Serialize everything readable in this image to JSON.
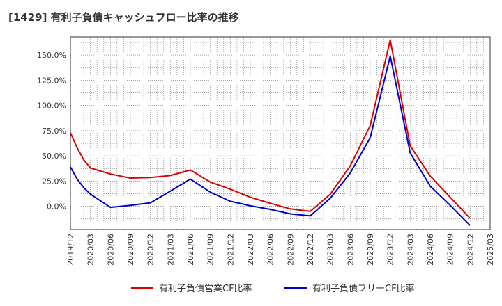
{
  "chart_data": {
    "type": "line",
    "title": "[1429]  有利子負債キャッシュフロー比率の推移",
    "x": [
      "2019/12",
      "2020/03",
      "2020/06",
      "2020/09",
      "2020/12",
      "2021/03",
      "2021/06",
      "2021/09",
      "2021/12",
      "2022/03",
      "2022/06",
      "2022/09",
      "2022/12",
      "2023/03",
      "2023/06",
      "2023/09",
      "2023/12",
      "2024/03",
      "2024/06",
      "2024/09",
      "2024/12",
      "2025/03"
    ],
    "x_tick_labels": [
      "2019/12",
      "2020/03",
      "2020/06",
      "2020/09",
      "2020/12",
      "2021/03",
      "2021/06",
      "2021/09",
      "2021/12",
      "2022/03",
      "2022/06",
      "2022/09",
      "2022/12",
      "2023/03",
      "2023/06",
      "2023/09",
      "2023/12",
      "2024/03",
      "2024/06",
      "2024/09",
      "2024/12",
      "2025/03"
    ],
    "ylim": [
      -23,
      168
    ],
    "y_ticks": [
      0,
      25,
      50,
      75,
      100,
      125,
      150
    ],
    "y_tick_labels": [
      "0.0%",
      "25.0%",
      "50.0%",
      "75.0%",
      "100.0%",
      "125.0%",
      "150.0%"
    ],
    "grid": true,
    "legend_position": "bottom",
    "series": [
      {
        "name": "有利子負債営業CF比率",
        "color": "#dd0000",
        "points": [
          {
            "x": "2019/12",
            "y": 73
          },
          {
            "x": "2020/01",
            "y": 58
          },
          {
            "x": "2020/02",
            "y": 46
          },
          {
            "x": "2020/03",
            "y": 38
          },
          {
            "x": "2020/06",
            "y": 32
          },
          {
            "x": "2020/09",
            "y": 28
          },
          {
            "x": "2020/12",
            "y": 28.5
          },
          {
            "x": "2021/03",
            "y": 30.5
          },
          {
            "x": "2021/06",
            "y": 36
          },
          {
            "x": "2021/09",
            "y": 24
          },
          {
            "x": "2021/12",
            "y": 17
          },
          {
            "x": "2022/03",
            "y": 9
          },
          {
            "x": "2022/06",
            "y": 3
          },
          {
            "x": "2022/09",
            "y": -2.5
          },
          {
            "x": "2022/12",
            "y": -5
          },
          {
            "x": "2023/03",
            "y": 12
          },
          {
            "x": "2023/06",
            "y": 40
          },
          {
            "x": "2023/09",
            "y": 80
          },
          {
            "x": "2023/12",
            "y": 165
          },
          {
            "x": "2024/03",
            "y": 60
          },
          {
            "x": "2024/06",
            "y": 30
          },
          {
            "x": "2024/09",
            "y": 9
          },
          {
            "x": "2024/12",
            "y": -12
          }
        ]
      },
      {
        "name": "有利子負債フリーCF比率",
        "color": "#0000cc",
        "points": [
          {
            "x": "2019/12",
            "y": 39
          },
          {
            "x": "2020/01",
            "y": 27
          },
          {
            "x": "2020/02",
            "y": 18.5
          },
          {
            "x": "2020/03",
            "y": 12
          },
          {
            "x": "2020/06",
            "y": -1
          },
          {
            "x": "2020/09",
            "y": 1
          },
          {
            "x": "2020/12",
            "y": 3.5
          },
          {
            "x": "2021/03",
            "y": 15
          },
          {
            "x": "2021/06",
            "y": 27
          },
          {
            "x": "2021/09",
            "y": 14
          },
          {
            "x": "2021/12",
            "y": 5
          },
          {
            "x": "2022/03",
            "y": 0.5
          },
          {
            "x": "2022/06",
            "y": -3
          },
          {
            "x": "2022/09",
            "y": -7.5
          },
          {
            "x": "2022/12",
            "y": -9.5
          },
          {
            "x": "2023/03",
            "y": 8
          },
          {
            "x": "2023/06",
            "y": 33
          },
          {
            "x": "2023/09",
            "y": 68
          },
          {
            "x": "2023/12",
            "y": 149
          },
          {
            "x": "2024/03",
            "y": 53
          },
          {
            "x": "2024/06",
            "y": 20
          },
          {
            "x": "2024/09",
            "y": 1
          },
          {
            "x": "2024/12",
            "y": -19
          }
        ]
      }
    ]
  }
}
